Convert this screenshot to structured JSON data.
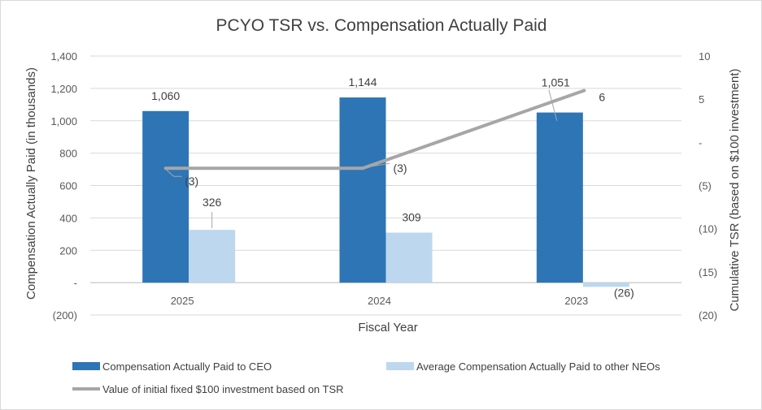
{
  "chart_data": {
    "type": "bar",
    "title": "PCYO TSR vs. Compensation Actually Paid",
    "xlabel": "Fiscal Year",
    "ylabel": "Compensation Actually Paid (in thousands)",
    "y2label": "Cumulative TSR (based on $100 investment)",
    "categories": [
      "2025",
      "2024",
      "2023"
    ],
    "ylim": [
      -200,
      1400
    ],
    "y_ticks": [
      {
        "value": 1400,
        "label": "1,400"
      },
      {
        "value": 1200,
        "label": "1,200"
      },
      {
        "value": 1000,
        "label": "1,000"
      },
      {
        "value": 800,
        "label": "800"
      },
      {
        "value": 600,
        "label": "600"
      },
      {
        "value": 400,
        "label": "400"
      },
      {
        "value": 200,
        "label": "200"
      },
      {
        "value": 0,
        "label": "-"
      },
      {
        "value": -200,
        "label": "(200)"
      }
    ],
    "y2lim": [
      -20,
      10
    ],
    "y2_ticks": [
      {
        "value": 10,
        "label": "10"
      },
      {
        "value": 5,
        "label": "5"
      },
      {
        "value": 0,
        "label": "-"
      },
      {
        "value": -5,
        "label": "(5)"
      },
      {
        "value": -10,
        "label": "(10)"
      },
      {
        "value": -15,
        "label": "(15)"
      },
      {
        "value": -20,
        "label": "(20)"
      }
    ],
    "grid": true,
    "legend_position": "bottom",
    "series": [
      {
        "name": "Compensation Actually Paid to CEO",
        "type": "bar",
        "axis": "left",
        "color": "#2e75b6",
        "values": [
          1060,
          1144,
          1051
        ],
        "labels": [
          "1,060",
          "1,144",
          "1,051"
        ]
      },
      {
        "name": "Average  Compensation Actually Paid to other NEOs",
        "type": "bar",
        "axis": "left",
        "color": "#bdd7ee",
        "values": [
          326,
          309,
          -26
        ],
        "labels": [
          "326",
          "309",
          "(26)"
        ]
      },
      {
        "name": "Value of initial fixed $100 investment based on TSR",
        "type": "line",
        "axis": "right",
        "color": "#a6a6a6",
        "values": [
          -3,
          -3,
          6
        ],
        "labels": [
          "(3)",
          "(3)",
          "6"
        ]
      }
    ]
  }
}
